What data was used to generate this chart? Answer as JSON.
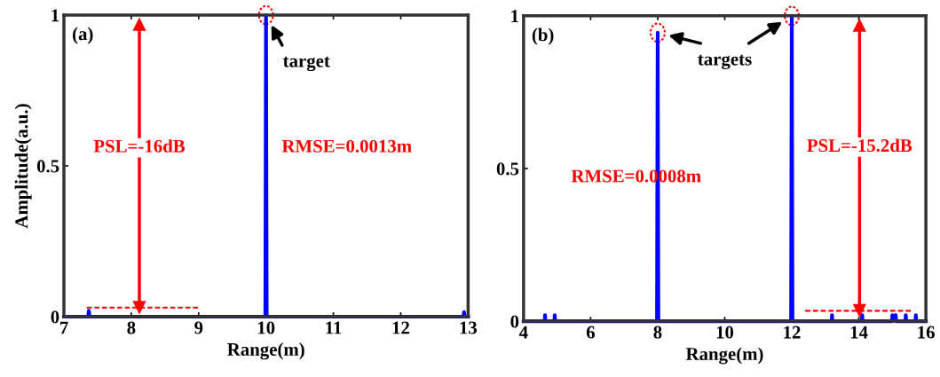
{
  "chart_data": [
    {
      "type": "line",
      "title": "(a)",
      "xlabel": "Range(m)",
      "ylabel": "Amplitude(a.u.)",
      "xlim": [
        7,
        13
      ],
      "ylim": [
        0,
        1
      ],
      "xticks": [
        7,
        8,
        9,
        10,
        11,
        12,
        13
      ],
      "yticks": [
        0,
        0.5,
        1
      ],
      "grid": false,
      "legend": false,
      "series": [
        {
          "color": "#0000ff",
          "line_style": "solid",
          "x": [
            7,
            7.36,
            7.37,
            7.38,
            9.99,
            10,
            10.01,
            12.93,
            12.94,
            12.95,
            13
          ],
          "values": [
            0,
            0,
            0.02,
            0,
            0,
            1,
            0,
            0,
            0.015,
            0,
            0
          ]
        },
        {
          "color": "#ff0000",
          "line_style": "dashed",
          "x": [
            7.34,
            8.99
          ],
          "values": [
            0.03,
            0.03
          ]
        },
        {
          "color": "#ff0000",
          "line_style": "solid",
          "marker": "triangle",
          "x": [
            8.12,
            8.12
          ],
          "values": [
            0.03,
            0.97
          ]
        }
      ],
      "annotations": [
        {
          "text": "target",
          "x": 10,
          "y": 1
        },
        "PSL=-16dB",
        "RMSE=0.0013m"
      ]
    },
    {
      "type": "line",
      "title": "(b)",
      "xlabel": "Range(m)",
      "xlim": [
        4,
        16
      ],
      "ylim": [
        0,
        1
      ],
      "xticks": [
        4,
        6,
        8,
        10,
        12,
        14,
        16
      ],
      "yticks": [
        0,
        0.5,
        1
      ],
      "grid": false,
      "legend": false,
      "series": [
        {
          "color": "#0000ff",
          "line_style": "solid",
          "x": [
            4,
            4.63,
            4.64,
            4.65,
            4.92,
            4.93,
            4.94,
            7.98,
            8,
            8.02,
            11.98,
            12,
            12.02,
            13.19,
            13.2,
            13.21,
            14.09,
            14.1,
            14.11,
            14.99,
            15.0,
            15.05,
            15.1,
            15.11,
            15.39,
            15.4,
            15.41,
            15.69,
            15.7,
            15.71,
            16
          ],
          "values": [
            0,
            0,
            0.02,
            0,
            0,
            0.02,
            0,
            0,
            0.945,
            0,
            0,
            1,
            0,
            0,
            0.02,
            0,
            0,
            0.02,
            0,
            0,
            0.02,
            0.01,
            0.02,
            0,
            0,
            0.02,
            0,
            0,
            0.02,
            0,
            0
          ]
        },
        {
          "color": "#ff0000",
          "line_style": "dashed",
          "x": [
            12.4,
            15.55
          ],
          "values": [
            0.034,
            0.034
          ]
        },
        {
          "color": "#ff0000",
          "line_style": "solid",
          "marker": "triangle",
          "x": [
            14.02,
            14.02
          ],
          "values": [
            0.034,
            0.97
          ]
        }
      ],
      "annotations": [
        {
          "text": "targets",
          "x": 8,
          "y": 0.945
        },
        "RMSE=0.0008m",
        "PSL=-15.2dB"
      ]
    }
  ]
}
